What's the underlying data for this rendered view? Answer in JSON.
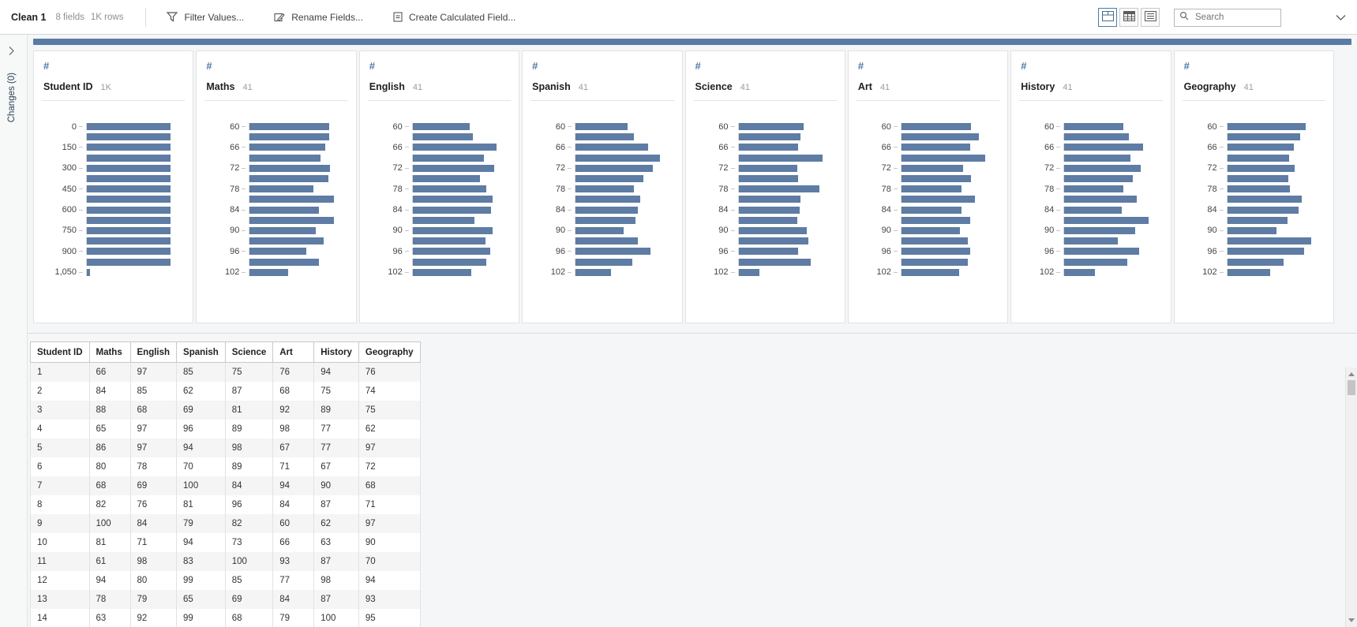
{
  "toolbar": {
    "step_name": "Clean 1",
    "field_count": "8 fields",
    "row_count": "1K rows",
    "actions": [
      {
        "label": "Filter Values...",
        "icon": "funnel-icon"
      },
      {
        "label": "Rename Fields...",
        "icon": "pencil-icon"
      },
      {
        "label": "Create Calculated Field...",
        "icon": "calculated-field-icon"
      }
    ],
    "view_toggles": [
      {
        "name": "profile-and-data-view",
        "selected": true
      },
      {
        "name": "data-grid-view",
        "selected": false
      },
      {
        "name": "list-view",
        "selected": false
      }
    ],
    "search_placeholder": "Search"
  },
  "sidebar": {
    "changes_label": "Changes (0)"
  },
  "colors": {
    "bar": "#5e7ca4",
    "accent": "#4e79a7",
    "top_scrollbar": "#5a7ba3"
  },
  "profile_cards": [
    {
      "name": "Student ID",
      "count": "1K",
      "type_icon": "#",
      "axis_labels": [
        "0",
        "150",
        "300",
        "450",
        "600",
        "750",
        "900",
        "1,050"
      ],
      "bars": [
        1,
        1,
        1,
        1,
        1,
        1,
        1,
        1,
        1,
        1,
        1,
        1,
        1,
        1,
        0.04
      ]
    },
    {
      "name": "Maths",
      "count": "41",
      "type_icon": "#",
      "axis_labels": [
        "60",
        "66",
        "72",
        "78",
        "84",
        "90",
        "96",
        "102"
      ],
      "bars": [
        0.95,
        0.95,
        0.9,
        0.84,
        0.96,
        0.94,
        0.76,
        1.0,
        0.82,
        1.0,
        0.79,
        0.88,
        0.67,
        0.82,
        0.46
      ]
    },
    {
      "name": "English",
      "count": "41",
      "type_icon": "#",
      "axis_labels": [
        "60",
        "66",
        "72",
        "78",
        "84",
        "90",
        "96",
        "102"
      ],
      "bars": [
        0.68,
        0.72,
        1.0,
        0.85,
        0.97,
        0.8,
        0.88,
        0.95,
        0.93,
        0.74,
        0.95,
        0.87,
        0.92,
        0.88,
        0.7
      ]
    },
    {
      "name": "Spanish",
      "count": "41",
      "type_icon": "#",
      "axis_labels": [
        "60",
        "66",
        "72",
        "78",
        "84",
        "90",
        "96",
        "102"
      ],
      "bars": [
        0.62,
        0.69,
        0.86,
        1.0,
        0.92,
        0.81,
        0.69,
        0.77,
        0.74,
        0.71,
        0.57,
        0.74,
        0.89,
        0.68,
        0.42
      ]
    },
    {
      "name": "Science",
      "count": "41",
      "type_icon": "#",
      "axis_labels": [
        "60",
        "66",
        "72",
        "78",
        "84",
        "90",
        "96",
        "102"
      ],
      "bars": [
        0.78,
        0.74,
        0.71,
        1.0,
        0.7,
        0.71,
        0.96,
        0.74,
        0.73,
        0.7,
        0.81,
        0.83,
        0.71,
        0.86,
        0.25
      ]
    },
    {
      "name": "Art",
      "count": "41",
      "type_icon": "#",
      "axis_labels": [
        "60",
        "66",
        "72",
        "78",
        "84",
        "90",
        "96",
        "102"
      ],
      "bars": [
        0.83,
        0.92,
        0.82,
        1.0,
        0.73,
        0.83,
        0.72,
        0.88,
        0.72,
        0.82,
        0.7,
        0.79,
        0.82,
        0.79,
        0.69
      ]
    },
    {
      "name": "History",
      "count": "41",
      "type_icon": "#",
      "axis_labels": [
        "60",
        "66",
        "72",
        "78",
        "84",
        "90",
        "96",
        "102"
      ],
      "bars": [
        0.7,
        0.77,
        0.94,
        0.79,
        0.91,
        0.82,
        0.7,
        0.86,
        0.68,
        1.0,
        0.84,
        0.64,
        0.89,
        0.75,
        0.36
      ]
    },
    {
      "name": "Geography",
      "count": "41",
      "type_icon": "#",
      "axis_labels": [
        "60",
        "66",
        "72",
        "78",
        "84",
        "90",
        "96",
        "102"
      ],
      "bars": [
        0.93,
        0.87,
        0.79,
        0.74,
        0.8,
        0.73,
        0.75,
        0.89,
        0.85,
        0.72,
        0.59,
        1.0,
        0.92,
        0.67,
        0.51
      ]
    }
  ],
  "data_grid": {
    "headers": [
      "Student ID",
      "Maths",
      "English",
      "Spanish",
      "Science",
      "Art",
      "History",
      "Geography"
    ],
    "rows": [
      [
        "1",
        "66",
        "97",
        "85",
        "75",
        "76",
        "94",
        "76"
      ],
      [
        "2",
        "84",
        "85",
        "62",
        "87",
        "68",
        "75",
        "74"
      ],
      [
        "3",
        "88",
        "68",
        "69",
        "81",
        "92",
        "89",
        "75"
      ],
      [
        "4",
        "65",
        "97",
        "96",
        "89",
        "98",
        "77",
        "62"
      ],
      [
        "5",
        "86",
        "97",
        "94",
        "98",
        "67",
        "77",
        "97"
      ],
      [
        "6",
        "80",
        "78",
        "70",
        "89",
        "71",
        "67",
        "72"
      ],
      [
        "7",
        "68",
        "69",
        "100",
        "84",
        "94",
        "90",
        "68"
      ],
      [
        "8",
        "82",
        "76",
        "81",
        "96",
        "84",
        "87",
        "71"
      ],
      [
        "9",
        "100",
        "84",
        "79",
        "82",
        "60",
        "62",
        "97"
      ],
      [
        "10",
        "81",
        "71",
        "94",
        "73",
        "66",
        "63",
        "90"
      ],
      [
        "11",
        "61",
        "98",
        "83",
        "100",
        "93",
        "87",
        "70"
      ],
      [
        "12",
        "94",
        "80",
        "99",
        "85",
        "77",
        "98",
        "94"
      ],
      [
        "13",
        "78",
        "79",
        "65",
        "69",
        "84",
        "87",
        "93"
      ],
      [
        "14",
        "63",
        "92",
        "99",
        "68",
        "79",
        "100",
        "95"
      ]
    ]
  }
}
